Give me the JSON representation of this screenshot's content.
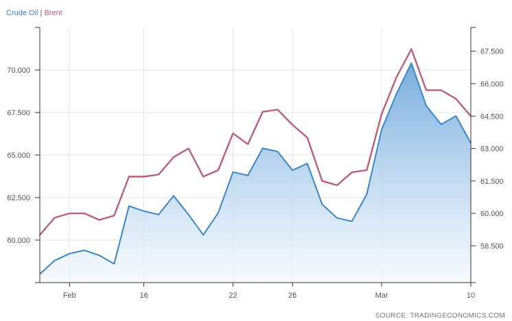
{
  "legend": {
    "series1": "Crude Oil",
    "separator": "|",
    "series2": "Brent"
  },
  "source": "SOURCE: TRADINGECONOMICS.COM",
  "colors": {
    "crude": "#3a85c6",
    "brent": "#b95f76",
    "fill_top": "#6fa9dc",
    "fill_bottom": "#f4f8fd",
    "grid": "#e6e6e6",
    "axis": "#333333"
  },
  "chart_data": {
    "type": "area",
    "x_tick_labels": [
      "Feb",
      "16",
      "22",
      "26",
      "Mar",
      "10"
    ],
    "x_ticks": [
      "Feb 11",
      "Feb 16",
      "Feb 22",
      "Feb 26",
      "Mar 4",
      "Mar 10"
    ],
    "x_range": [
      "Feb 9",
      "Mar 10"
    ],
    "left_axis": {
      "series": "Crude Oil",
      "ticks": [
        "60.000",
        "62.500",
        "65.000",
        "67.500",
        "70.000"
      ],
      "ylim": [
        57.5,
        72.5
      ]
    },
    "right_axis": {
      "series": "Brent",
      "ticks": [
        "58.500",
        "60.000",
        "61.500",
        "63.000",
        "64.500",
        "66.000",
        "67.500"
      ],
      "ylim": [
        56.8,
        68.6
      ]
    },
    "grid": true,
    "legend_position": "top-left",
    "series": [
      {
        "name": "Crude Oil",
        "axis": "left",
        "style": "area",
        "x": [
          "Feb 9",
          "Feb 10",
          "Feb 11",
          "Feb 12",
          "Feb 13",
          "Feb 14",
          "Feb 15",
          "Feb 16",
          "Feb 17",
          "Feb 18",
          "Feb 19",
          "Feb 20",
          "Feb 21",
          "Feb 22",
          "Feb 23",
          "Feb 24",
          "Feb 25",
          "Feb 26",
          "Feb 27",
          "Feb 28",
          "Mar 1",
          "Mar 2",
          "Mar 3",
          "Mar 4",
          "Mar 5",
          "Mar 6",
          "Mar 7",
          "Mar 8",
          "Mar 9",
          "Mar 10"
        ],
        "values": [
          58.0,
          58.8,
          59.2,
          59.4,
          59.1,
          58.6,
          62.0,
          61.7,
          61.5,
          62.6,
          61.5,
          60.3,
          61.6,
          64.0,
          63.8,
          65.4,
          65.2,
          64.1,
          64.5,
          62.1,
          61.3,
          61.1,
          62.7,
          66.5,
          68.6,
          70.4,
          67.9,
          66.8,
          67.3,
          65.7
        ]
      },
      {
        "name": "Brent",
        "axis": "right",
        "style": "line",
        "x": [
          "Feb 9",
          "Feb 10",
          "Feb 11",
          "Feb 12",
          "Feb 13",
          "Feb 14",
          "Feb 15",
          "Feb 16",
          "Feb 17",
          "Feb 18",
          "Feb 19",
          "Feb 20",
          "Feb 21",
          "Feb 22",
          "Feb 23",
          "Feb 24",
          "Feb 25",
          "Feb 26",
          "Feb 27",
          "Feb 28",
          "Mar 1",
          "Mar 2",
          "Mar 3",
          "Mar 4",
          "Mar 5",
          "Mar 6",
          "Mar 7",
          "Mar 8",
          "Mar 9",
          "Mar 10"
        ],
        "values": [
          59.0,
          59.8,
          60.0,
          60.0,
          59.7,
          59.9,
          61.7,
          61.7,
          61.8,
          62.6,
          63.0,
          61.7,
          62.0,
          63.7,
          63.2,
          64.7,
          64.8,
          64.1,
          63.5,
          61.5,
          61.3,
          61.9,
          62.0,
          64.6,
          66.3,
          67.6,
          65.7,
          65.7,
          65.3,
          64.5
        ]
      }
    ]
  }
}
